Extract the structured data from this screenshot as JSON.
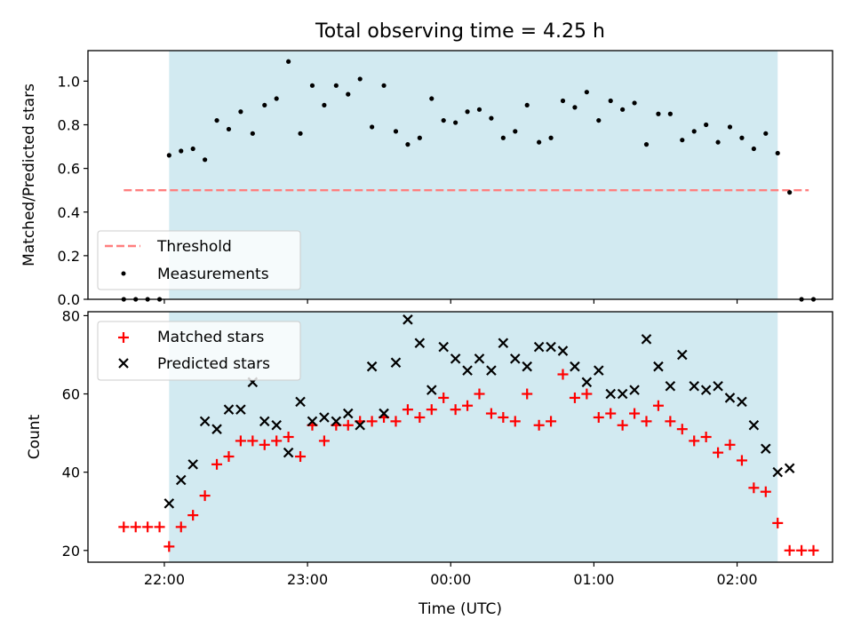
{
  "title": "Total observing time = 4.25 h",
  "xlabel": "Time (UTC)",
  "xticks": [
    "22:00",
    "23:00",
    "00:00",
    "01:00",
    "02:00"
  ],
  "colors": {
    "shade": "#add8e6",
    "threshold": "#ff7f7f",
    "measurements": "#000000",
    "matched": "#ff0000",
    "predicted": "#000000"
  },
  "chart_data": [
    {
      "type": "scatter",
      "ylabel": "Matched/Predicted stars",
      "yticks": [
        "0.0",
        "0.2",
        "0.4",
        "0.6",
        "0.8",
        "1.0"
      ],
      "ylim": [
        0,
        1.14
      ],
      "x_unit": "minutes relative to 22:00 UTC",
      "xlim": [
        -32,
        280
      ],
      "observing_window": [
        2,
        257
      ],
      "legend": [
        "Threshold",
        "Measurements"
      ],
      "legend_position": "lower-left",
      "threshold": {
        "name": "Threshold",
        "value": 0.5,
        "x_range": [
          -17,
          270
        ]
      },
      "series": [
        {
          "name": "Measurements",
          "x": [
            -17,
            -12,
            -7,
            -2,
            2,
            7,
            12,
            17,
            22,
            27,
            32,
            37,
            42,
            47,
            52,
            57,
            62,
            67,
            72,
            77,
            82,
            87,
            92,
            97,
            102,
            107,
            112,
            117,
            122,
            127,
            132,
            137,
            142,
            147,
            152,
            157,
            162,
            167,
            172,
            177,
            182,
            187,
            192,
            197,
            202,
            207,
            212,
            217,
            222,
            227,
            232,
            237,
            242,
            247,
            252,
            257,
            262,
            267,
            272
          ],
          "y": [
            0,
            0,
            0,
            0,
            0.66,
            0.68,
            0.69,
            0.64,
            0.82,
            0.78,
            0.86,
            0.76,
            0.89,
            0.92,
            1.09,
            0.76,
            0.98,
            0.89,
            0.98,
            0.94,
            1.01,
            0.79,
            0.98,
            0.77,
            0.71,
            0.74,
            0.92,
            0.82,
            0.81,
            0.86,
            0.87,
            0.83,
            0.74,
            0.77,
            0.89,
            0.72,
            0.74,
            0.91,
            0.88,
            0.95,
            0.82,
            0.91,
            0.87,
            0.9,
            0.71,
            0.85,
            0.85,
            0.73,
            0.77,
            0.8,
            0.72,
            0.79,
            0.74,
            0.69,
            0.76,
            0.67,
            0.49,
            0,
            0
          ]
        }
      ]
    },
    {
      "type": "scatter",
      "ylabel": "Count",
      "yticks": [
        "20",
        "40",
        "60",
        "80"
      ],
      "ylim": [
        17,
        81
      ],
      "x_unit": "minutes relative to 22:00 UTC",
      "xlim": [
        -32,
        280
      ],
      "observing_window": [
        2,
        257
      ],
      "legend": [
        "Matched stars",
        "Predicted stars"
      ],
      "legend_position": "upper-left",
      "series": [
        {
          "name": "Matched stars",
          "marker": "plus",
          "x": [
            -17,
            -12,
            -7,
            -2,
            2,
            7,
            12,
            17,
            22,
            27,
            32,
            37,
            42,
            47,
            52,
            57,
            62,
            67,
            72,
            77,
            82,
            87,
            92,
            97,
            102,
            107,
            112,
            117,
            122,
            127,
            132,
            137,
            142,
            147,
            152,
            157,
            162,
            167,
            172,
            177,
            182,
            187,
            192,
            197,
            202,
            207,
            212,
            217,
            222,
            227,
            232,
            237,
            242,
            247,
            252,
            257,
            262,
            267,
            272
          ],
          "y": [
            26,
            26,
            26,
            26,
            21,
            26,
            29,
            34,
            42,
            44,
            48,
            48,
            47,
            48,
            49,
            44,
            52,
            48,
            52,
            52,
            53,
            53,
            54,
            53,
            56,
            54,
            56,
            59,
            56,
            57,
            60,
            55,
            54,
            53,
            60,
            52,
            53,
            65,
            59,
            60,
            54,
            55,
            52,
            55,
            53,
            57,
            53,
            51,
            48,
            49,
            45,
            47,
            43,
            36,
            35,
            27,
            20,
            20,
            20
          ]
        },
        {
          "name": "Predicted stars",
          "marker": "x",
          "x": [
            2,
            7,
            12,
            17,
            22,
            27,
            32,
            37,
            42,
            47,
            52,
            57,
            62,
            67,
            72,
            77,
            82,
            87,
            92,
            97,
            102,
            107,
            112,
            117,
            122,
            127,
            132,
            137,
            142,
            147,
            152,
            157,
            162,
            167,
            172,
            177,
            182,
            187,
            192,
            197,
            202,
            207,
            212,
            217,
            222,
            227,
            232,
            237,
            242,
            247,
            252,
            257,
            262
          ],
          "y": [
            32,
            38,
            42,
            53,
            51,
            56,
            56,
            63,
            53,
            52,
            45,
            58,
            53,
            54,
            53,
            55,
            52,
            67,
            55,
            68,
            79,
            73,
            61,
            72,
            69,
            66,
            69,
            66,
            73,
            69,
            67,
            72,
            72,
            71,
            67,
            63,
            66,
            60,
            60,
            61,
            74,
            67,
            62,
            70,
            62,
            61,
            62,
            59,
            58,
            52,
            46,
            40,
            41
          ]
        }
      ]
    }
  ]
}
